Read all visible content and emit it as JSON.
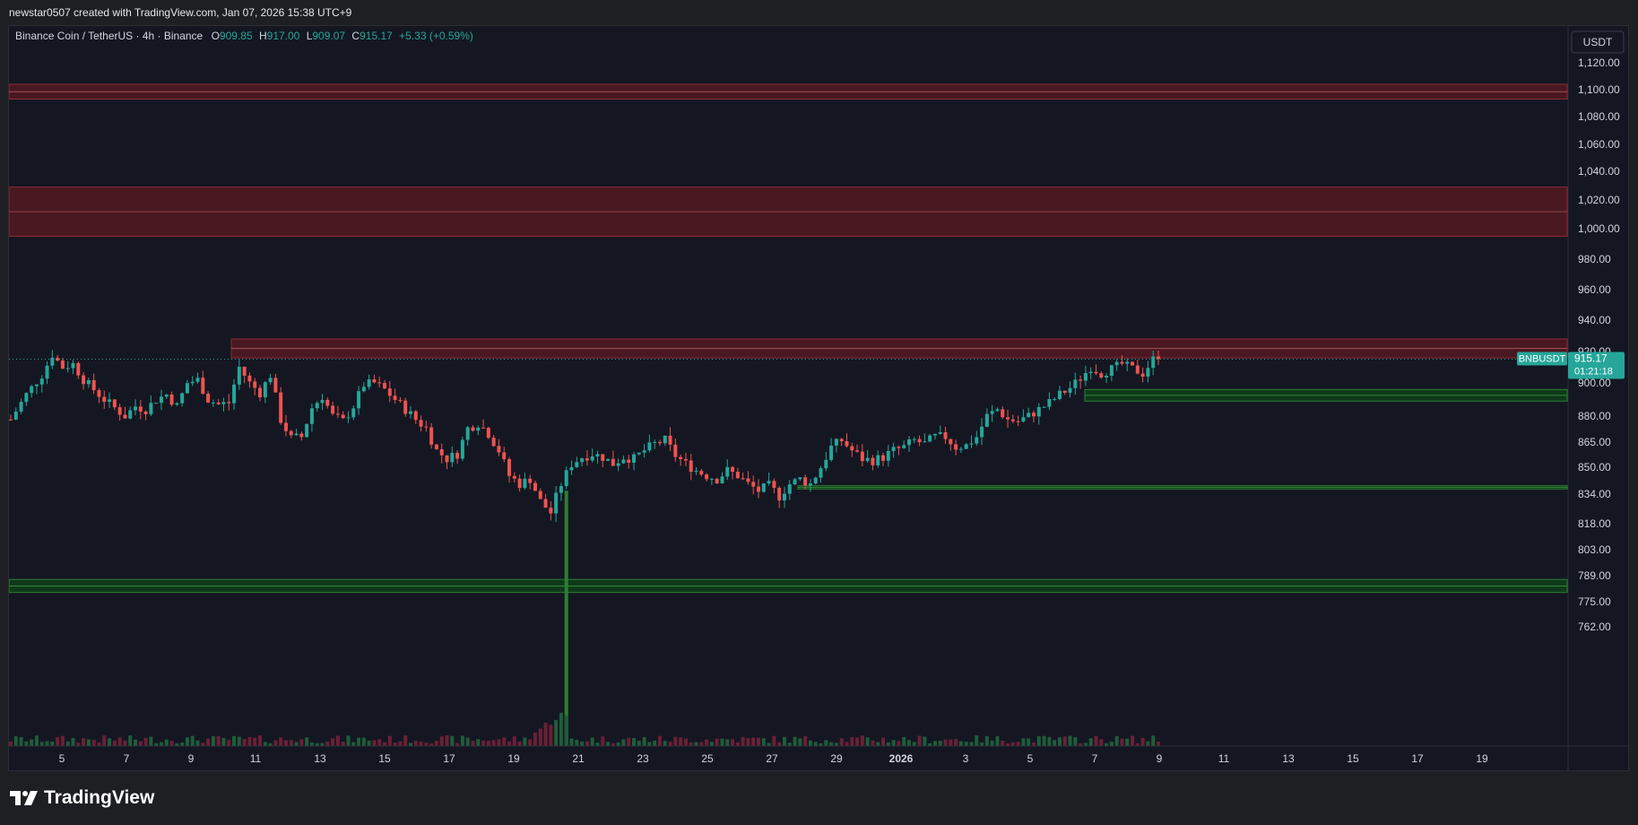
{
  "header": {
    "attribution": "newstar0507 created with TradingView.com, Jan 07, 2026 15:38 UTC+9"
  },
  "legend": {
    "symbol_text": "Binance Coin / TetherUS · 4h · Binance",
    "o_label": "O",
    "o_value": "909.85",
    "h_label": "H",
    "h_value": "917.00",
    "l_label": "L",
    "l_value": "909.07",
    "c_label": "C",
    "c_value": "915.17",
    "change": "+5.33 (+0.59%)"
  },
  "currency_button": "USDT",
  "price_badge": {
    "symbol": "BNBUSDT",
    "price": "915.17",
    "countdown": "01:21:18"
  },
  "footer": {
    "brand": "TradingView"
  },
  "colors": {
    "up": "#26a69a",
    "down": "#ef5350",
    "resistance_zone": "#4a1820",
    "support_zone": "#0f3a1a",
    "background": "#141722"
  },
  "chart_data": {
    "type": "candlestick",
    "symbol": "BNBUSDT",
    "interval": "4h",
    "y_ticks": [
      "1,120.00",
      "1,100.00",
      "1,080.00",
      "1,060.00",
      "1,040.00",
      "1,020.00",
      "1,000.00",
      "980.00",
      "960.00",
      "940.00",
      "920.00",
      "900.00",
      "880.00",
      "865.00",
      "850.00",
      "834.00",
      "818.00",
      "803.00",
      "789.00",
      "775.00",
      "762.00"
    ],
    "x_ticks": [
      "5",
      "7",
      "9",
      "11",
      "13",
      "15",
      "17",
      "19",
      "21",
      "23",
      "25",
      "27",
      "29",
      "2026",
      "3",
      "5",
      "7",
      "9",
      "11",
      "13",
      "15",
      "17",
      "19"
    ],
    "last_price": 915.17,
    "resistance_zones": [
      [
        1093,
        1104
      ],
      [
        995,
        1029
      ],
      [
        916,
        928
      ]
    ],
    "support_zones": [
      [
        889,
        896
      ],
      [
        837,
        839
      ],
      [
        780,
        787
      ]
    ],
    "close_path": [
      [
        0,
        878
      ],
      [
        3,
        893
      ],
      [
        6,
        905
      ],
      [
        8,
        918
      ],
      [
        10,
        910
      ],
      [
        12,
        912
      ],
      [
        14,
        902
      ],
      [
        16,
        896
      ],
      [
        18,
        890
      ],
      [
        20,
        885
      ],
      [
        22,
        880
      ],
      [
        24,
        886
      ],
      [
        26,
        884
      ],
      [
        28,
        890
      ],
      [
        30,
        893
      ],
      [
        32,
        886
      ],
      [
        34,
        900
      ],
      [
        36,
        902
      ],
      [
        38,
        890
      ],
      [
        40,
        887
      ],
      [
        42,
        888
      ],
      [
        44,
        910
      ],
      [
        46,
        900
      ],
      [
        48,
        894
      ],
      [
        50,
        905
      ],
      [
        52,
        878
      ],
      [
        54,
        867
      ],
      [
        56,
        868
      ],
      [
        58,
        885
      ],
      [
        60,
        892
      ],
      [
        62,
        880
      ],
      [
        64,
        877
      ],
      [
        66,
        886
      ],
      [
        68,
        899
      ],
      [
        70,
        900
      ],
      [
        72,
        896
      ],
      [
        74,
        890
      ],
      [
        76,
        884
      ],
      [
        78,
        878
      ],
      [
        80,
        873
      ],
      [
        82,
        860
      ],
      [
        84,
        855
      ],
      [
        86,
        858
      ],
      [
        88,
        873
      ],
      [
        90,
        876
      ],
      [
        92,
        870
      ],
      [
        94,
        860
      ],
      [
        96,
        845
      ],
      [
        98,
        840
      ],
      [
        100,
        843
      ],
      [
        102,
        830
      ],
      [
        104,
        824
      ],
      [
        106,
        840
      ],
      [
        108,
        852
      ],
      [
        110,
        856
      ],
      [
        112,
        858
      ],
      [
        114,
        856
      ],
      [
        116,
        852
      ],
      [
        118,
        856
      ],
      [
        120,
        855
      ],
      [
        122,
        860
      ],
      [
        124,
        864
      ],
      [
        126,
        866
      ],
      [
        128,
        857
      ],
      [
        130,
        852
      ],
      [
        132,
        848
      ],
      [
        134,
        845
      ],
      [
        136,
        843
      ],
      [
        138,
        848
      ],
      [
        140,
        845
      ],
      [
        142,
        840
      ],
      [
        144,
        836
      ],
      [
        146,
        839
      ],
      [
        148,
        833
      ],
      [
        150,
        840
      ],
      [
        152,
        843
      ],
      [
        154,
        840
      ],
      [
        156,
        850
      ],
      [
        158,
        862
      ],
      [
        160,
        866
      ],
      [
        162,
        860
      ],
      [
        164,
        855
      ],
      [
        166,
        854
      ],
      [
        168,
        856
      ],
      [
        170,
        860
      ],
      [
        172,
        862
      ],
      [
        174,
        866
      ],
      [
        176,
        864
      ],
      [
        178,
        868
      ],
      [
        180,
        868
      ],
      [
        182,
        862
      ],
      [
        184,
        863
      ],
      [
        186,
        868
      ],
      [
        188,
        880
      ],
      [
        190,
        884
      ],
      [
        192,
        878
      ],
      [
        194,
        877
      ],
      [
        196,
        880
      ],
      [
        198,
        884
      ],
      [
        200,
        888
      ],
      [
        202,
        893
      ],
      [
        204,
        897
      ],
      [
        206,
        903
      ],
      [
        208,
        910
      ],
      [
        210,
        906
      ],
      [
        212,
        909
      ],
      [
        214,
        912
      ],
      [
        216,
        909
      ],
      [
        218,
        906
      ],
      [
        220,
        915
      ],
      [
        221,
        915.17
      ]
    ],
    "candle_count": 222,
    "volume_spike_index": 107,
    "volume_spike_wick_low": 773
  }
}
